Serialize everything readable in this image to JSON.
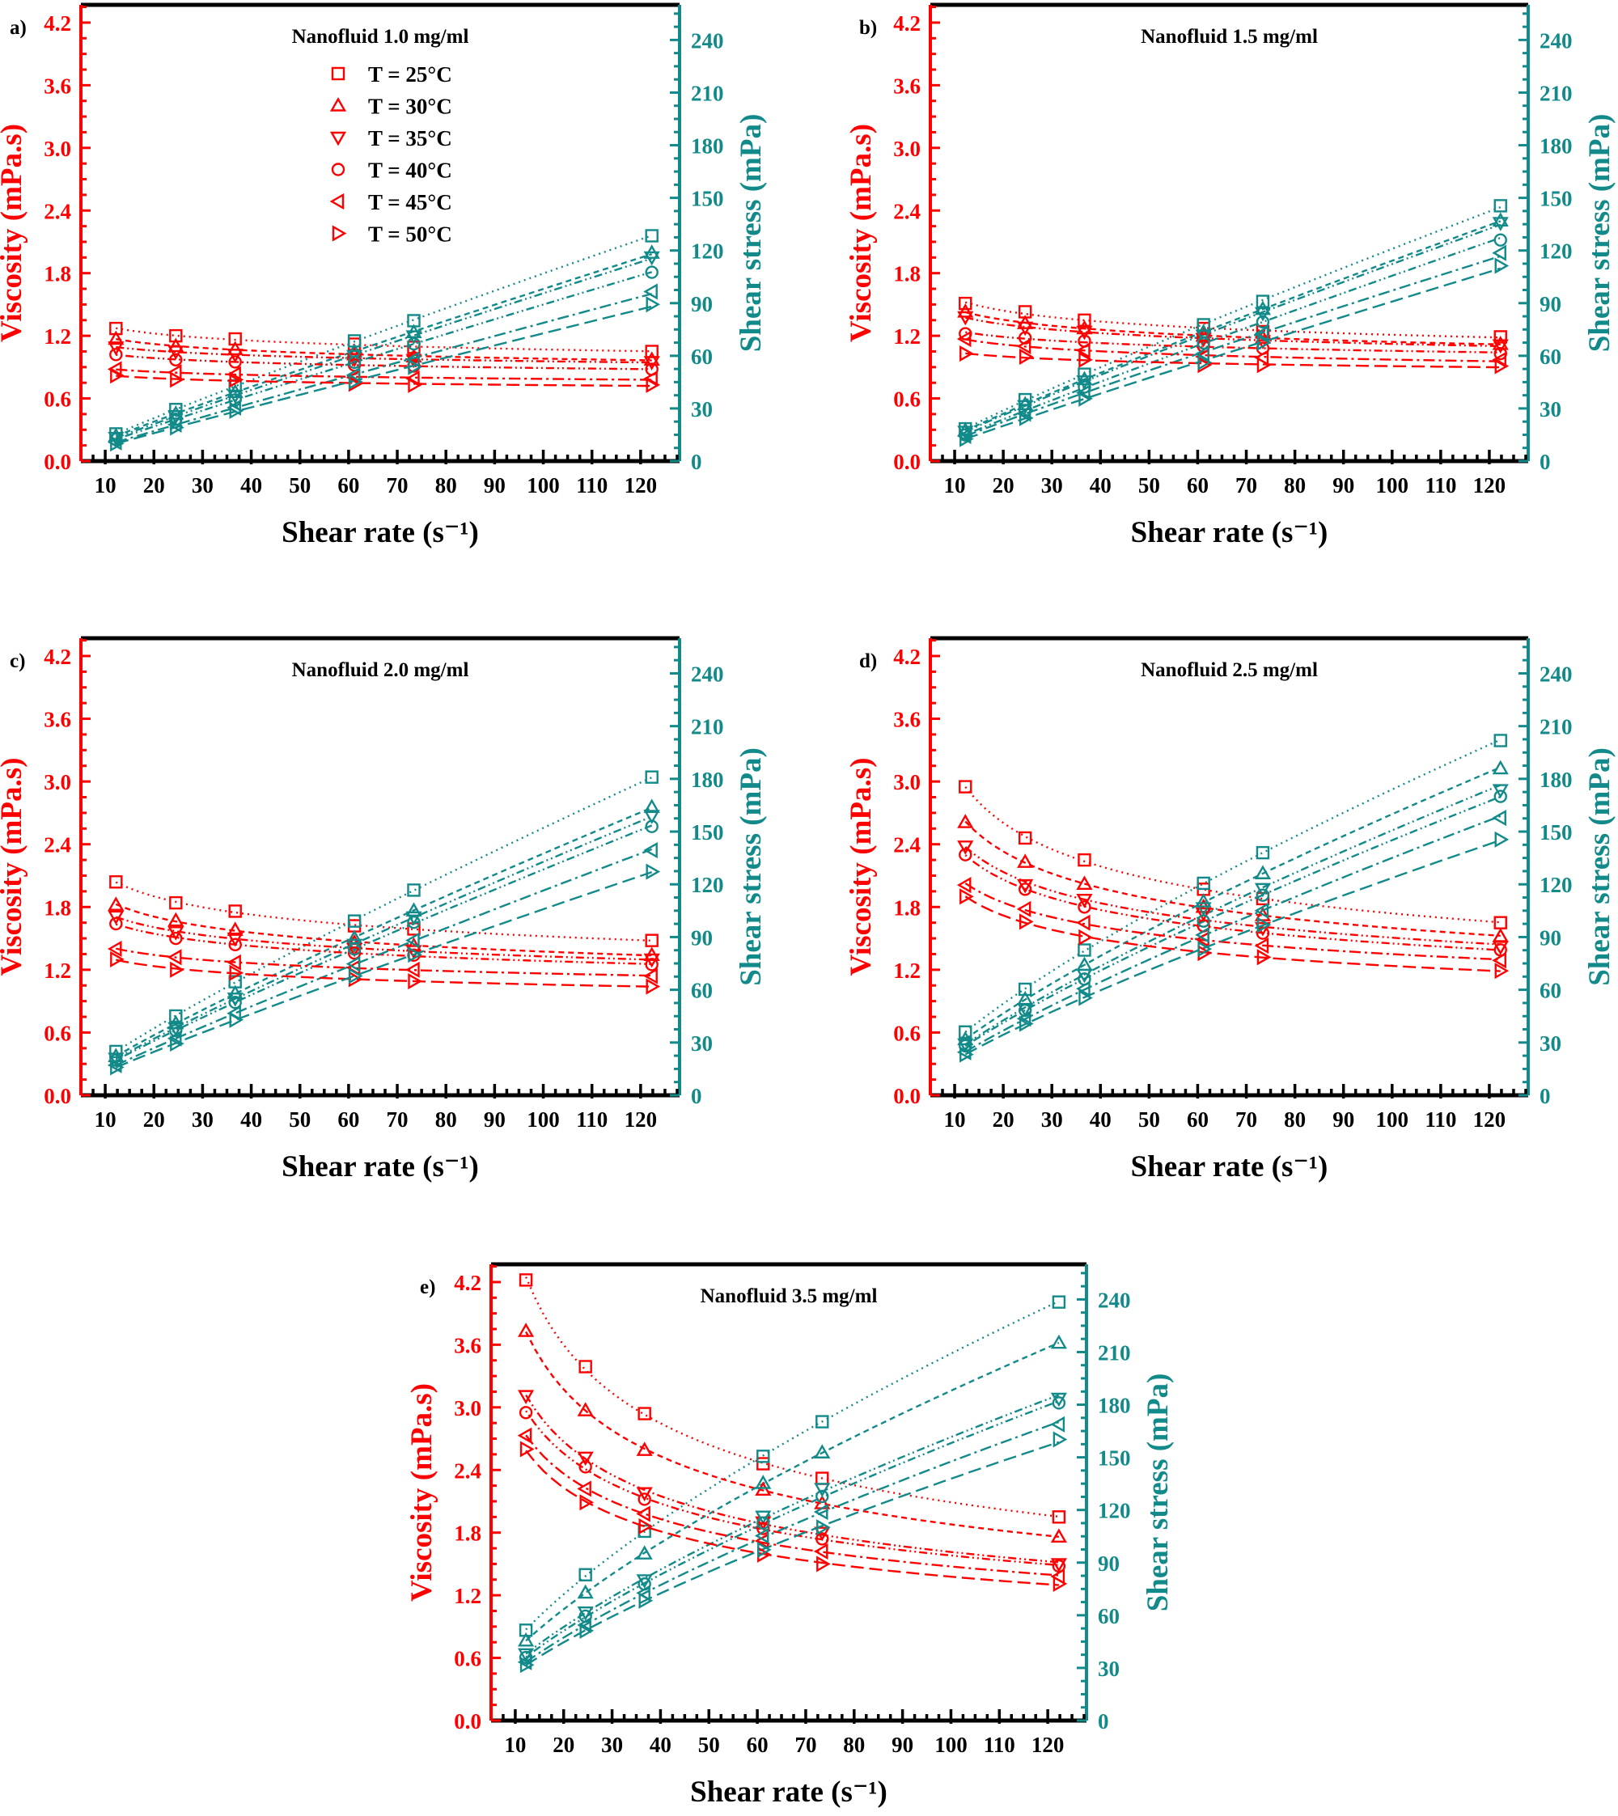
{
  "colors": {
    "viscosity": "#ff0000",
    "shear_stress": "#138a8a",
    "frame": "#000000"
  },
  "legend": {
    "entries": [
      "T = 25°C",
      "T = 30°C",
      "T = 35°C",
      "T = 40°C",
      "T = 45°C",
      "T = 50°C"
    ],
    "markers": [
      "square",
      "triangle-up",
      "triangle-down",
      "circle",
      "triangle-left",
      "triangle-right"
    ],
    "line_styles": [
      "dotted",
      "short-dash",
      "dash-dot-dot",
      "dot-dot-dash",
      "dash-dot",
      "dashed"
    ],
    "placement": "top-left (panel a only)"
  },
  "chart_data": [
    {
      "panel": "a)",
      "title": "Nanofluid 1.0 mg/ml",
      "type": "line",
      "xlabel": "Shear rate (s⁻¹)",
      "ylabel_left": "Viscosity (mPa.s)",
      "ylabel_right": "Shear stress (mPa)",
      "xlim": [
        5,
        128
      ],
      "ylim_left": [
        0,
        4.37
      ],
      "ylim_right": [
        0,
        260
      ],
      "xticks": [
        10,
        20,
        30,
        40,
        50,
        60,
        70,
        80,
        90,
        100,
        110,
        120
      ],
      "yticks_left": [
        "0.0",
        "0.6",
        "1.2",
        "1.8",
        "2.4",
        "3.0",
        "3.6",
        "4.2"
      ],
      "yticks_right": [
        "0",
        "30",
        "60",
        "90",
        "120",
        "150",
        "180",
        "210",
        "240"
      ],
      "grid": false,
      "x": [
        12.2,
        24.5,
        36.7,
        61.2,
        73.4,
        122.3
      ],
      "viscosity": [
        [
          1.27,
          1.2,
          1.17,
          1.12,
          1.09,
          1.05
        ],
        [
          1.17,
          1.1,
          1.07,
          1.02,
          1.0,
          0.97
        ],
        [
          1.09,
          1.05,
          1.02,
          0.98,
          0.97,
          0.95
        ],
        [
          1.02,
          0.97,
          0.95,
          0.92,
          0.91,
          0.88
        ],
        [
          0.88,
          0.85,
          0.83,
          0.8,
          0.79,
          0.79
        ],
        [
          0.82,
          0.78,
          0.78,
          0.74,
          0.73,
          0.73
        ]
      ],
      "shear_stress": [
        [
          15.5,
          29.4,
          42.9,
          68.5,
          80.0,
          128.4
        ],
        [
          14.3,
          27.0,
          39.3,
          62.4,
          73.4,
          118.6
        ],
        [
          13.3,
          25.7,
          37.4,
          60.0,
          71.2,
          116.2
        ],
        [
          12.4,
          23.8,
          34.9,
          56.3,
          66.8,
          107.6
        ],
        [
          10.7,
          20.8,
          30.5,
          49.0,
          58.0,
          96.6
        ],
        [
          10.0,
          19.1,
          28.6,
          45.3,
          53.6,
          89.3
        ]
      ]
    },
    {
      "panel": "b)",
      "title": "Nanofluid 1.5 mg/ml",
      "type": "line",
      "xlabel": "Shear rate (s⁻¹)",
      "ylabel_left": "Viscosity (mPa.s)",
      "ylabel_right": "Shear stress (mPa)",
      "xlim": [
        5,
        128
      ],
      "ylim_left": [
        0,
        4.37
      ],
      "ylim_right": [
        0,
        260
      ],
      "xticks": [
        10,
        20,
        30,
        40,
        50,
        60,
        70,
        80,
        90,
        100,
        110,
        120
      ],
      "yticks_left": [
        "0.0",
        "0.6",
        "1.2",
        "1.8",
        "2.4",
        "3.0",
        "3.6",
        "4.2"
      ],
      "yticks_right": [
        "0",
        "30",
        "60",
        "90",
        "120",
        "150",
        "180",
        "210",
        "240"
      ],
      "grid": false,
      "x": [
        12.2,
        24.5,
        36.7,
        61.2,
        73.4,
        122.3
      ],
      "viscosity": [
        [
          1.51,
          1.43,
          1.35,
          1.27,
          1.24,
          1.19
        ],
        [
          1.43,
          1.32,
          1.27,
          1.2,
          1.18,
          1.12
        ],
        [
          1.38,
          1.28,
          1.24,
          1.17,
          1.15,
          1.11
        ],
        [
          1.22,
          1.18,
          1.15,
          1.1,
          1.08,
          1.03
        ],
        [
          1.17,
          1.1,
          1.06,
          1.0,
          0.99,
          0.97
        ],
        [
          1.03,
          1.0,
          0.97,
          0.92,
          0.92,
          0.91
        ]
      ],
      "shear_stress": [
        [
          18.4,
          35.0,
          49.5,
          77.7,
          91.0,
          145.5
        ],
        [
          17.4,
          32.3,
          46.6,
          73.4,
          86.6,
          137.0
        ],
        [
          16.8,
          31.4,
          45.5,
          71.6,
          84.4,
          135.8
        ],
        [
          14.9,
          28.9,
          42.2,
          67.3,
          79.3,
          126.0
        ],
        [
          14.3,
          27.0,
          38.9,
          61.2,
          72.7,
          118.6
        ],
        [
          12.6,
          24.5,
          35.6,
          56.3,
          67.5,
          111.3
        ]
      ]
    },
    {
      "panel": "c)",
      "title": "Nanofluid 2.0 mg/ml",
      "type": "line",
      "xlabel": "Shear rate (s⁻¹)",
      "ylabel_left": "Viscosity (mPa.s)",
      "ylabel_right": "Shear stress (mPa)",
      "xlim": [
        5,
        128
      ],
      "ylim_left": [
        0,
        4.37
      ],
      "ylim_right": [
        0,
        260
      ],
      "xticks": [
        10,
        20,
        30,
        40,
        50,
        60,
        70,
        80,
        90,
        100,
        110,
        120
      ],
      "yticks_left": [
        "0.0",
        "0.6",
        "1.2",
        "1.8",
        "2.4",
        "3.0",
        "3.6",
        "4.2"
      ],
      "yticks_right": [
        "0",
        "30",
        "60",
        "90",
        "120",
        "150",
        "180",
        "210",
        "240"
      ],
      "grid": false,
      "x": [
        12.2,
        24.5,
        36.7,
        61.2,
        73.4,
        122.3
      ],
      "viscosity": [
        [
          2.04,
          1.84,
          1.76,
          1.62,
          1.59,
          1.48
        ],
        [
          1.82,
          1.67,
          1.58,
          1.46,
          1.43,
          1.34
        ],
        [
          1.71,
          1.56,
          1.5,
          1.4,
          1.38,
          1.3
        ],
        [
          1.64,
          1.5,
          1.44,
          1.36,
          1.34,
          1.25
        ],
        [
          1.4,
          1.32,
          1.27,
          1.22,
          1.2,
          1.14
        ],
        [
          1.3,
          1.2,
          1.17,
          1.11,
          1.09,
          1.04
        ]
      ],
      "shear_stress": [
        [
          24.9,
          45.1,
          64.6,
          99.1,
          116.7,
          181.0
        ],
        [
          22.2,
          40.9,
          58.0,
          89.4,
          105.0,
          163.9
        ],
        [
          20.9,
          38.2,
          55.1,
          85.7,
          101.3,
          159.0
        ],
        [
          20.0,
          36.8,
          52.8,
          83.2,
          98.4,
          152.9
        ],
        [
          17.1,
          32.3,
          46.6,
          74.7,
          88.1,
          139.4
        ],
        [
          15.9,
          29.4,
          42.9,
          67.9,
          80.0,
          127.2
        ]
      ]
    },
    {
      "panel": "d)",
      "title": "Nanofluid 2.5 mg/ml",
      "type": "line",
      "xlabel": "Shear rate (s⁻¹)",
      "ylabel_left": "Viscosity (mPa.s)",
      "ylabel_right": "Shear stress (mPa)",
      "xlim": [
        5,
        128
      ],
      "ylim_left": [
        0,
        4.37
      ],
      "ylim_right": [
        0,
        260
      ],
      "xticks": [
        10,
        20,
        30,
        40,
        50,
        60,
        70,
        80,
        90,
        100,
        110,
        120
      ],
      "yticks_left": [
        "0.0",
        "0.6",
        "1.2",
        "1.8",
        "2.4",
        "3.0",
        "3.6",
        "4.2"
      ],
      "yticks_right": [
        "0",
        "30",
        "60",
        "90",
        "120",
        "150",
        "180",
        "210",
        "240"
      ],
      "grid": false,
      "x": [
        12.2,
        24.5,
        36.7,
        61.2,
        73.4,
        122.3
      ],
      "viscosity": [
        [
          2.95,
          2.46,
          2.25,
          1.97,
          1.88,
          1.65
        ],
        [
          2.61,
          2.23,
          2.02,
          1.8,
          1.72,
          1.52
        ],
        [
          2.38,
          2.01,
          1.87,
          1.74,
          1.6,
          1.42
        ],
        [
          2.3,
          1.97,
          1.8,
          1.62,
          1.55,
          1.39
        ],
        [
          2.01,
          1.78,
          1.65,
          1.49,
          1.43,
          1.29
        ],
        [
          1.9,
          1.66,
          1.51,
          1.36,
          1.32,
          1.19
        ]
      ],
      "shear_stress": [
        [
          36.0,
          60.3,
          82.6,
          120.6,
          138.0,
          201.8
        ],
        [
          31.8,
          54.6,
          74.1,
          110.2,
          126.2,
          185.9
        ],
        [
          29.0,
          49.2,
          68.6,
          106.5,
          117.4,
          173.7
        ],
        [
          28.1,
          48.3,
          66.1,
          99.1,
          113.8,
          170.0
        ],
        [
          24.5,
          43.6,
          60.6,
          91.2,
          105.0,
          157.8
        ],
        [
          23.2,
          40.7,
          55.4,
          83.2,
          96.9,
          145.5
        ]
      ]
    },
    {
      "panel": "e)",
      "title": "Nanofluid 3.5 mg/ml",
      "type": "line",
      "xlabel": "Shear rate (s⁻¹)",
      "ylabel_left": "Viscosity (mPa.s)",
      "ylabel_right": "Shear stress (mPa)",
      "xlim": [
        5,
        128
      ],
      "ylim_left": [
        0,
        4.37
      ],
      "ylim_right": [
        0,
        260
      ],
      "xticks": [
        10,
        20,
        30,
        40,
        50,
        60,
        70,
        80,
        90,
        100,
        110,
        120
      ],
      "yticks_left": [
        "0.0",
        "0.6",
        "1.2",
        "1.8",
        "2.4",
        "3.0",
        "3.6",
        "4.2"
      ],
      "yticks_right": [
        "0",
        "30",
        "60",
        "90",
        "120",
        "150",
        "180",
        "210",
        "240"
      ],
      "grid": false,
      "x": [
        12.2,
        24.5,
        36.7,
        61.2,
        73.4,
        122.3
      ],
      "viscosity": [
        [
          4.22,
          3.39,
          2.94,
          2.46,
          2.32,
          1.95
        ],
        [
          3.73,
          2.97,
          2.59,
          2.21,
          2.08,
          1.76
        ],
        [
          3.11,
          2.52,
          2.18,
          1.9,
          1.8,
          1.5
        ],
        [
          2.95,
          2.43,
          2.12,
          1.84,
          1.74,
          1.48
        ],
        [
          2.73,
          2.22,
          1.98,
          1.72,
          1.62,
          1.38
        ],
        [
          2.6,
          2.09,
          1.86,
          1.59,
          1.5,
          1.31
        ]
      ],
      "shear_stress": [
        [
          51.5,
          83.1,
          107.9,
          150.6,
          170.3,
          238.5
        ],
        [
          45.5,
          72.8,
          95.1,
          135.3,
          152.7,
          215.2
        ],
        [
          37.9,
          61.7,
          80.0,
          116.3,
          132.1,
          183.5
        ],
        [
          36.0,
          59.5,
          77.8,
          112.6,
          127.7,
          181.0
        ],
        [
          33.3,
          54.4,
          72.7,
          105.3,
          118.9,
          168.8
        ],
        [
          31.7,
          51.2,
          68.3,
          97.3,
          110.1,
          160.2
        ]
      ]
    }
  ]
}
